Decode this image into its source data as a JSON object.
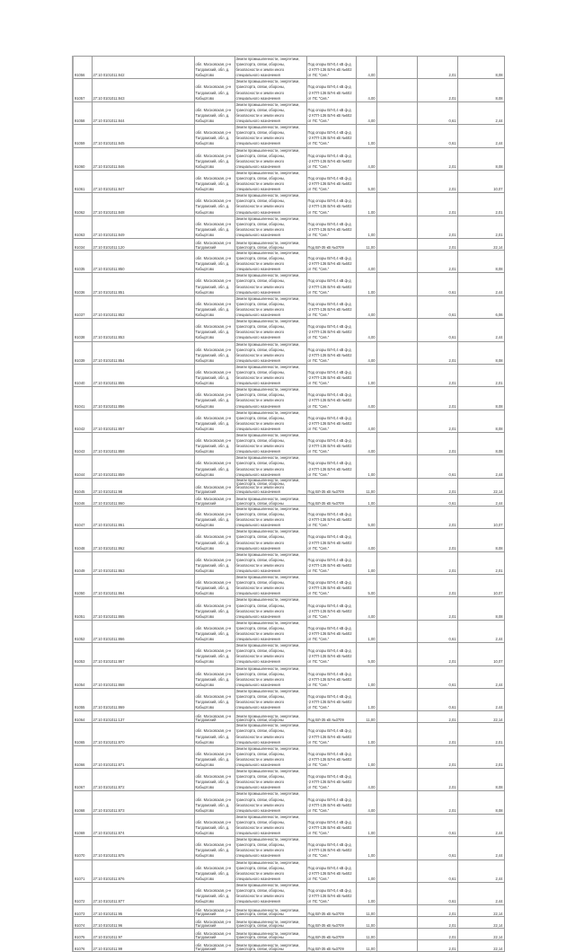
{
  "document": {
    "rows": [
      {
        "id": "91056",
        "cad": "27:10 0101011:842",
        "addr": "обл. Московская, р-н Талдомский, обл. д. Кобыртово",
        "cat": "Земли промышленности, энергетики, транспорта, связи, обороны, безопасности и земли иного специального назначения",
        "purpose": "Под опоры ВЛ-0,4 кВ ф-д -2 КТП-136 ВЛ-6 кВ №602 от ПС \"Сев.\"",
        "area": "4,00",
        "v1": "2,01",
        "v2": "8,08"
      },
      {
        "id": "91057",
        "cad": "27:10 0101011:843",
        "addr": "обл. Московская, р-н Талдомский, обл. д. Кобыртово",
        "cat": "Земли промышленности, энергетики, транспорта, связи, обороны, безопасности и земли иного специального назначения",
        "purpose": "Под опоры ВЛ-0,4 кВ ф-д -2 КТП-136 ВЛ-6 кВ №602 от ПС \"Сев.\"",
        "area": "4,00",
        "v1": "2,01",
        "v2": "8,08"
      },
      {
        "id": "91058",
        "cad": "27:10 0101011:844",
        "addr": "обл. Московская, р-н Талдомский, обл. д. Кобыртово",
        "cat": "Земли промышленности, энергетики, транспорта, связи, обороны, безопасности и земли иного специального назначения",
        "purpose": "Под опоры ВЛ-0,4 кВ ф-д -2 КТП-136 ВЛ-6 кВ №602 от ПС \"Сев.\"",
        "area": "4,00",
        "v1": "0,61",
        "v2": "2,44"
      },
      {
        "id": "91059",
        "cad": "27:10 0101011:845",
        "addr": "обл. Московская, р-н Талдомский, обл. д. Кобыртово",
        "cat": "Земли промышленности, энергетики, транспорта, связи, обороны, безопасности и земли иного специального назначения",
        "purpose": "Под опоры ВЛ-0,4 кВ ф-д -2 КТП-136 ВЛ-6 кВ №602 от ПС \"Сев.\"",
        "area": "1,00",
        "v1": "0,61",
        "v2": "2,44"
      },
      {
        "id": "91060",
        "cad": "27:10 0101011:846",
        "addr": "обл. Московская, р-н Талдомский, обл. д. Кобыртово",
        "cat": "Земли промышленности, энергетики, транспорта, связи, обороны, безопасности и земли иного специального назначения",
        "purpose": "Под опоры ВЛ-0,4 кВ ф-д -2 КТП-136 ВЛ-6 кВ №602 от ПС \"Сев.\"",
        "area": "4,00",
        "v1": "2,01",
        "v2": "8,08"
      },
      {
        "id": "91061",
        "cad": "27:10 0101011:847",
        "addr": "обл. Московская, р-н Талдомский, обл. д. Кобыртово",
        "cat": "Земли промышленности, энергетики, транспорта, связи, обороны, безопасности и земли иного специального назначения",
        "purpose": "Под опоры ВЛ-0,4 кВ ф-д -2 КТП-136 ВЛ-6 кВ №602 от ПС \"Сев.\"",
        "area": "5,00",
        "v1": "2,01",
        "v2": "10,07"
      },
      {
        "id": "91062",
        "cad": "27:10 0101011:848",
        "addr": "обл. Московская, р-н Талдомский, обл. д. Кобыртово",
        "cat": "Земли промышленности, энергетики, транспорта, связи, обороны, безопасности и земли иного специального назначения",
        "purpose": "Под опоры ВЛ-0,4 кВ ф-д -2 КТП-136 ВЛ-6 кВ №602 от ПС \"Сев.\"",
        "area": "1,00",
        "v1": "2,01",
        "v2": "2,01"
      },
      {
        "id": "91063",
        "cad": "27:10 0101011:849",
        "addr": "обл. Московская, р-н Талдомский, обл. д. Кобыртово",
        "cat": "Земли промышленности, энергетики, транспорта, связи, обороны, безопасности и земли иного специального назначения",
        "purpose": "Под опоры ВЛ-0,4 кВ ф-д -2 КТП-136 ВЛ-6 кВ №602 от ПС \"Сев.\"",
        "area": "1,00",
        "v1": "2,01",
        "v2": "2,01"
      },
      {
        "id": "91034",
        "cad": "27:10 0101011:120",
        "addr": "обл. Московская, р-н Талдомский",
        "cat": "Земли промышленности, энергетики, транспорта, связи, обороны",
        "purpose": "Под ВЛ-35 кВ №3709",
        "area": "11,00",
        "v1": "2,01",
        "v2": "22,14"
      },
      {
        "id": "91035",
        "cad": "27:10 0101011:850",
        "addr": "обл. Московская, р-н Талдомский, обл. д. Кобыртово",
        "cat": "Земли промышленности, энергетики, транспорта, связи, обороны, безопасности и земли иного специального назначения",
        "purpose": "Под опоры ВЛ-0,4 кВ ф-д -2 КТП-136 ВЛ-6 кВ №602 от ПС \"Сев.\"",
        "area": "4,00",
        "v1": "2,01",
        "v2": "8,08"
      },
      {
        "id": "91036",
        "cad": "27:10 0101011:851",
        "addr": "обл. Московская, р-н Талдомский, обл. д. Кобыртово",
        "cat": "Земли промышленности, энергетики, транспорта, связи, обороны, безопасности и земли иного специального назначения",
        "purpose": "Под опоры ВЛ-0,4 кВ ф-д -2 КТП-136 ВЛ-6 кВ №602 от ПС \"Сев.\"",
        "area": "1,00",
        "v1": "0,61",
        "v2": "2,44"
      },
      {
        "id": "91037",
        "cad": "27:10 0101011:852",
        "addr": "обл. Московская, р-н Талдомский, обл. д. Кобыртово",
        "cat": "Земли промышленности, энергетики, транспорта, связи, обороны, безопасности и земли иного специального назначения",
        "purpose": "Под опоры ВЛ-0,4 кВ ф-д -2 КТП-136 ВЛ-6 кВ №602 от ПС \"Сев.\"",
        "area": "4,00",
        "v1": "0,61",
        "v2": "6,06"
      },
      {
        "id": "91038",
        "cad": "27:10 0101011:853",
        "addr": "обл. Московская, р-н Талдомский, обл. д. Кобыртово",
        "cat": "Земли промышленности, энергетики, транспорта, связи, обороны, безопасности и земли иного специального назначения",
        "purpose": "Под опоры ВЛ-0,4 кВ ф-д -2 КТП-136 ВЛ-6 кВ №602 от ПС \"Сев.\"",
        "area": "4,00",
        "v1": "0,61",
        "v2": "2,44"
      },
      {
        "id": "91039",
        "cad": "27:10 0101011:854",
        "addr": "обл. Московская, р-н Талдомский, обл. д. Кобыртово",
        "cat": "Земли промышленности, энергетики, транспорта, связи, обороны, безопасности и земли иного специального назначения",
        "purpose": "Под опоры ВЛ-0,4 кВ ф-д -2 КТП-136 ВЛ-6 кВ №602 от ПС \"Сев.\"",
        "area": "4,00",
        "v1": "2,01",
        "v2": "8,08"
      },
      {
        "id": "91040",
        "cad": "27:10 0101011:855",
        "addr": "обл. Московская, р-н Талдомский, обл. д. Кобыртово",
        "cat": "Земли промышленности, энергетики, транспорта, связи, обороны, безопасности и земли иного специального назначения",
        "purpose": "Под опоры ВЛ-0,4 кВ ф-д -2 КТП-136 ВЛ-6 кВ №602 от ПС \"Сев.\"",
        "area": "1,00",
        "v1": "2,01",
        "v2": "2,01"
      },
      {
        "id": "91041",
        "cad": "27:10 0101011:856",
        "addr": "обл. Московская, р-н Талдомский, обл. д. Кобыртово",
        "cat": "Земли промышленности, энергетики, транспорта, связи, обороны, безопасности и земли иного специального назначения",
        "purpose": "Под опоры ВЛ-0,4 кВ ф-д -2 КТП-136 ВЛ-6 кВ №602 от ПС \"Сев.\"",
        "area": "4,00",
        "v1": "2,01",
        "v2": "8,08"
      },
      {
        "id": "91042",
        "cad": "27:10 0101011:857",
        "addr": "обл. Московская, р-н Талдомский, обл. д. Кобыртово",
        "cat": "Земли промышленности, энергетики, транспорта, связи, обороны, безопасности и земли иного специального назначения",
        "purpose": "Под опоры ВЛ-0,4 кВ ф-д -2 КТП-136 ВЛ-6 кВ №602 от ПС \"Сев.\"",
        "area": "4,00",
        "v1": "2,01",
        "v2": "8,08"
      },
      {
        "id": "91043",
        "cad": "27:10 0101011:858",
        "addr": "обл. Московская, р-н Талдомский, обл. д. Кобыртово",
        "cat": "Земли промышленности, энергетики, транспорта, связи, обороны, безопасности и земли иного специального назначения",
        "purpose": "Под опоры ВЛ-0,4 кВ ф-д -2 КТП-136 ВЛ-6 кВ №602 от ПС \"Сев.\"",
        "area": "4,00",
        "v1": "2,01",
        "v2": "8,08"
      },
      {
        "id": "91044",
        "cad": "27:10 0101011:859",
        "addr": "обл. Московская, р-н Талдомский, обл. д. Кобыртово",
        "cat": "Земли промышленности, энергетики, транспорта, связи, обороны, безопасности и земли иного специального назначения",
        "purpose": "Под опоры ВЛ-0,4 кВ ф-д -2 КТП-136 ВЛ-6 кВ №602 от ПС \"Сев.\"",
        "area": "1,00",
        "v1": "0,61",
        "v2": "2,44"
      },
      {
        "id": "91045",
        "cad": "27:10 0101011:98",
        "addr": "обл. Московская, р-н Талдомский",
        "cat": "Земли промышленности, энергетики, транспорта, связи, обороны, безопасности и земли иного специального назначения",
        "purpose": "Под ВЛ-35 кВ №3709",
        "area": "11,00",
        "v1": "2,01",
        "v2": "22,14"
      },
      {
        "id": "91046",
        "cad": "27:10 0101011:860",
        "addr": "обл. Московская, р-н Талдомский",
        "cat": "Земли промышленности, энергетики, транспорта, связи, обороны",
        "purpose": "Под ВЛ-35 кВ №3709",
        "area": "1,00",
        "v1": "0,61",
        "v2": "2,44"
      },
      {
        "id": "91047",
        "cad": "27:10 0101011:861",
        "addr": "обл. Московская, р-н Талдомский, обл. д. Кобыртово",
        "cat": "Земли промышленности, энергетики, транспорта, связи, обороны, безопасности и земли иного специального назначения",
        "purpose": "Под опоры ВЛ-0,4 кВ ф-д -2 КТП-136 ВЛ-6 кВ №602 от ПС \"Сев.\"",
        "area": "5,00",
        "v1": "2,01",
        "v2": "10,07"
      },
      {
        "id": "91048",
        "cad": "27:10 0101011:862",
        "addr": "обл. Московская, р-н Талдомский, обл. д. Кобыртово",
        "cat": "Земли промышленности, энергетики, транспорта, связи, обороны, безопасности и земли иного специального назначения",
        "purpose": "Под опоры ВЛ-0,4 кВ ф-д -2 КТП-136 ВЛ-6 кВ №602 от ПС \"Сев.\"",
        "area": "4,00",
        "v1": "2,01",
        "v2": "8,08"
      },
      {
        "id": "91049",
        "cad": "27:10 0101011:863",
        "addr": "обл. Московская, р-н Талдомский, обл. д. Кобыртово",
        "cat": "Земли промышленности, энергетики, транспорта, связи, обороны, безопасности и земли иного специального назначения",
        "purpose": "Под опоры ВЛ-0,4 кВ ф-д -2 КТП-136 ВЛ-6 кВ №602 от ПС \"Сев.\"",
        "area": "1,00",
        "v1": "2,01",
        "v2": "2,01"
      },
      {
        "id": "91050",
        "cad": "27:10 0101011:864",
        "addr": "обл. Московская, р-н Талдомский, обл. д. Кобыртово",
        "cat": "Земли промышленности, энергетики, транспорта, связи, обороны, безопасности и земли иного специального назначения",
        "purpose": "Под опоры ВЛ-0,4 кВ ф-д -2 КТП-136 ВЛ-6 кВ №602 от ПС \"Сев.\"",
        "area": "5,00",
        "v1": "2,01",
        "v2": "10,07"
      },
      {
        "id": "91051",
        "cad": "27:10 0101011:865",
        "addr": "обл. Московская, р-н Талдомский, обл. д. Кобыртово",
        "cat": "Земли промышленности, энергетики, транспорта, связи, обороны, безопасности и земли иного специального назначения",
        "purpose": "Под опоры ВЛ-0,4 кВ ф-д -2 КТП-136 ВЛ-6 кВ №602 от ПС \"Сев.\"",
        "area": "4,00",
        "v1": "2,01",
        "v2": "8,08"
      },
      {
        "id": "91052",
        "cad": "27:10 0101011:866",
        "addr": "обл. Московская, р-н Талдомский, обл. д. Кобыртово",
        "cat": "Земли промышленности, энергетики, транспорта, связи, обороны, безопасности и земли иного специального назначения",
        "purpose": "Под опоры ВЛ-0,4 кВ ф-д -2 КТП-136 ВЛ-6 кВ №602 от ПС \"Сев.\"",
        "area": "1,00",
        "v1": "0,61",
        "v2": "2,44"
      },
      {
        "id": "91053",
        "cad": "27:10 0101011:867",
        "addr": "обл. Московская, р-н Талдомский, обл. д. Кобыртово",
        "cat": "Земли промышленности, энергетики, транспорта, связи, обороны, безопасности и земли иного специального назначения",
        "purpose": "Под опоры ВЛ-0,4 кВ ф-д -2 КТП-136 ВЛ-6 кВ №602 от ПС \"Сев.\"",
        "area": "5,00",
        "v1": "2,01",
        "v2": "10,07"
      },
      {
        "id": "91054",
        "cad": "27:10 0101011:868",
        "addr": "обл. Московская, р-н Талдомский, обл. д. Кобыртово",
        "cat": "Земли промышленности, энергетики, транспорта, связи, обороны, безопасности и земли иного специального назначения",
        "purpose": "Под опоры ВЛ-0,4 кВ ф-д -2 КТП-136 ВЛ-6 кВ №602 от ПС \"Сев.\"",
        "area": "1,00",
        "v1": "0,61",
        "v2": "2,44"
      },
      {
        "id": "91055",
        "cad": "27:10 0101011:869",
        "addr": "обл. Московская, р-н Талдомский, обл. д. Кобыртово",
        "cat": "Земли промышленности, энергетики, транспорта, связи, обороны, безопасности и земли иного специального назначения",
        "purpose": "Под опоры ВЛ-0,4 кВ ф-д -2 КТП-136 ВЛ-6 кВ №602 от ПС \"Сев.\"",
        "area": "1,00",
        "v1": "0,61",
        "v2": "2,44"
      },
      {
        "id": "91064",
        "cad": "27:10 0101011:137",
        "addr": "обл. Московская, р-н Талдомский",
        "cat": "Земли промышленности, энергетики, транспорта, связи, обороны",
        "purpose": "Под ВЛ-35 кВ №3709",
        "area": "11,00",
        "v1": "2,01",
        "v2": "22,14"
      },
      {
        "id": "91065",
        "cad": "27:10 0101011:870",
        "addr": "обл. Московская, р-н Талдомский, обл. д. Кобыртово",
        "cat": "Земли промышленности, энергетики, транспорта, связи, обороны, безопасности и земли иного специального назначения",
        "purpose": "Под опоры ВЛ-0,4 кВ ф-д -2 КТП-136 ВЛ-6 кВ №602 от ПС \"Сев.\"",
        "area": "1,00",
        "v1": "2,01",
        "v2": "2,01"
      },
      {
        "id": "91066",
        "cad": "27:10 0101011:871",
        "addr": "обл. Московская, р-н Талдомский, обл. д. Кобыртово",
        "cat": "Земли промышленности, энергетики, транспорта, связи, обороны, безопасности и земли иного специального назначения",
        "purpose": "Под опоры ВЛ-0,4 кВ ф-д -2 КТП-136 ВЛ-6 кВ №602 от ПС \"Сев.\"",
        "area": "1,00",
        "v1": "2,01",
        "v2": "2,01"
      },
      {
        "id": "91067",
        "cad": "27:10 0101011:872",
        "addr": "обл. Московская, р-н Талдомский, обл. д. Кобыртово",
        "cat": "Земли промышленности, энергетики, транспорта, связи, обороны, безопасности и земли иного специального назначения",
        "purpose": "Под опоры ВЛ-0,4 кВ ф-д -2 КТП-136 ВЛ-6 кВ №602 от ПС \"Сев.\"",
        "area": "4,00",
        "v1": "2,01",
        "v2": "8,08"
      },
      {
        "id": "91068",
        "cad": "27:10 0101011:873",
        "addr": "обл. Московская, р-н Талдомский, обл. д. Кобыртово",
        "cat": "Земли промышленности, энергетики, транспорта, связи, обороны, безопасности и земли иного специального назначения",
        "purpose": "Под опоры ВЛ-0,4 кВ ф-д -2 КТП-136 ВЛ-6 кВ №602 от ПС \"Сев.\"",
        "area": "4,00",
        "v1": "2,01",
        "v2": "8,08"
      },
      {
        "id": "91069",
        "cad": "27:10 0101011:874",
        "addr": "обл. Московская, р-н Талдомский, обл. д. Кобыртово",
        "cat": "Земли промышленности, энергетики, транспорта, связи, обороны, безопасности и земли иного специального назначения",
        "purpose": "Под опоры ВЛ-0,4 кВ ф-д -2 КТП-136 ВЛ-6 кВ №602 от ПС \"Сев.\"",
        "area": "1,00",
        "v1": "0,61",
        "v2": "2,44"
      },
      {
        "id": "91070",
        "cad": "27:10 0101011:875",
        "addr": "обл. Московская, р-н Талдомский, обл. д. Кобыртово",
        "cat": "Земли промышленности, энергетики, транспорта, связи, обороны, безопасности и земли иного специального назначения",
        "purpose": "Под опоры ВЛ-0,4 кВ ф-д -2 КТП-136 ВЛ-6 кВ №602 от ПС \"Сев.\"",
        "area": "1,00",
        "v1": "0,61",
        "v2": "2,44"
      },
      {
        "id": "91071",
        "cad": "27:10 0101011:876",
        "addr": "обл. Московская, р-н Талдомский, обл. д. Кобыртово",
        "cat": "Земли промышленности, энергетики, транспорта, связи, обороны, безопасности и земли иного специального назначения",
        "purpose": "Под опоры ВЛ-0,4 кВ ф-д -2 КТП-136 ВЛ-6 кВ №602 от ПС \"Сев.\"",
        "area": "1,00",
        "v1": "0,61",
        "v2": "2,44"
      },
      {
        "id": "91072",
        "cad": "27:10 0101011:877",
        "addr": "обл. Московская, р-н Талдомский, обл. д. Кобыртово",
        "cat": "Земли промышленности, энергетики, транспорта, связи, обороны, безопасности и земли иного специального назначения",
        "purpose": "Под опоры ВЛ-0,4 кВ ф-д -2 КТП-136 ВЛ-6 кВ №602 от ПС \"Сев.\"",
        "area": "1,00",
        "v1": "0,61",
        "v2": "2,44"
      },
      {
        "id": "91073",
        "cad": "27:10 0101011:95",
        "addr": "обл. Московская, р-н Талдомский",
        "cat": "Земли промышленности, энергетики, транспорта, связи, обороны",
        "purpose": "Под ВЛ-35 кВ №3709",
        "area": "11,00",
        "v1": "2,01",
        "v2": "22,14"
      },
      {
        "id": "91074",
        "cad": "27:10 0101011:96",
        "addr": "обл. Московская, р-н Талдомский",
        "cat": "Земли промышленности, энергетики, транспорта, связи, обороны",
        "purpose": "Под ВЛ-35 кВ №3709",
        "area": "11,00",
        "v1": "2,01",
        "v2": "22,14"
      },
      {
        "id": "91075",
        "cad": "27:10 0101011:97",
        "addr": "обл. Московская, р-н Талдомский",
        "cat": "Земли промышленности, энергетики, транспорта, связи, обороны",
        "purpose": "Под ВЛ-35 кВ №3709",
        "area": "11,00",
        "v1": "2,01",
        "v2": "22,14"
      },
      {
        "id": "91076",
        "cad": "27:10 0101011:99",
        "addr": "обл. Московская, р-н Талдомский",
        "cat": "Земли промышленности, энергетики, транспорта, связи, обороны",
        "purpose": "Под ВЛ-35 кВ №3709",
        "area": "11,00",
        "v1": "2,01",
        "v2": "22,14"
      }
    ]
  }
}
